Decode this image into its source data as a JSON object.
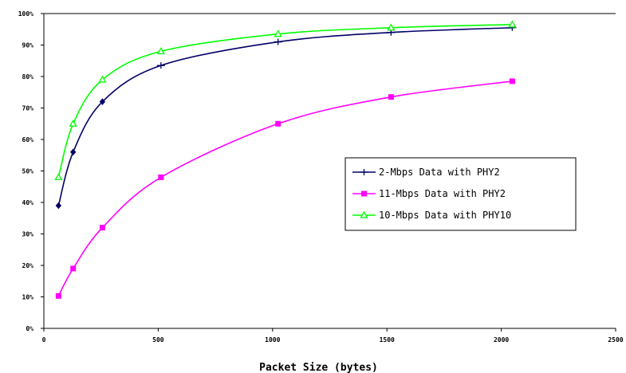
{
  "chart_data": {
    "type": "line",
    "title": "",
    "xlabel": "Packet Size (bytes)",
    "ylabel": "",
    "xlim": [
      0,
      2500
    ],
    "ylim": [
      0,
      100
    ],
    "x_ticks": [
      0,
      500,
      1000,
      1500,
      2000,
      2500
    ],
    "x_tick_labels": [
      "0",
      "500",
      "1000",
      "1500",
      "2000",
      "2500"
    ],
    "y_ticks": [
      0,
      10,
      20,
      30,
      40,
      50,
      60,
      70,
      80,
      90,
      100
    ],
    "y_tick_labels": [
      "0%",
      "10%",
      "20%",
      "30%",
      "40%",
      "50%",
      "60%",
      "70%",
      "80%",
      "90%",
      "100%"
    ],
    "grid": false,
    "legend_position": "right",
    "series": [
      {
        "name": "2-Mbps Data with PHY2",
        "color": "#000066",
        "marker": "diamond",
        "x": [
          64,
          128,
          256,
          512,
          1024,
          1518,
          2048
        ],
        "y": [
          39,
          56,
          72,
          83.5,
          91,
          94,
          95.5
        ]
      },
      {
        "name": "11-Mbps Data with PHY2",
        "color": "#ff00ff",
        "marker": "square",
        "x": [
          64,
          128,
          256,
          512,
          1024,
          1518,
          2048
        ],
        "y": [
          10.3,
          19,
          32,
          48,
          65,
          73.5,
          78.5
        ]
      },
      {
        "name": "10-Mbps Data with PHY10",
        "color": "#00ff00",
        "marker": "triangle",
        "x": [
          64,
          128,
          256,
          512,
          1024,
          1518,
          2048
        ],
        "y": [
          48,
          65,
          79,
          88,
          93.5,
          95.5,
          96.5
        ]
      }
    ]
  }
}
